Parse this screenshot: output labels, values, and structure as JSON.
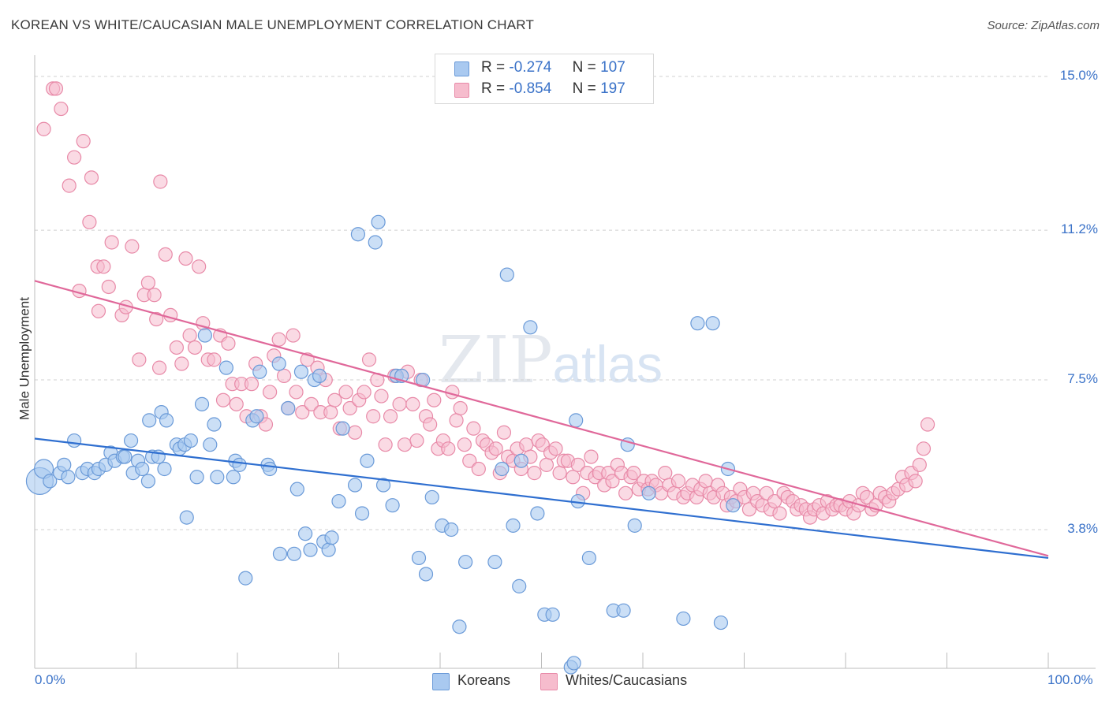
{
  "title": "KOREAN VS WHITE/CAUCASIAN MALE UNEMPLOYMENT CORRELATION CHART",
  "source": "Source: ZipAtlas.com",
  "watermark": {
    "zip": "ZIP",
    "atlas": "atlas"
  },
  "legend_top": [
    {
      "r_label": "R =",
      "r_value": "-0.274",
      "n_label": "N =",
      "n_value": "107"
    },
    {
      "r_label": "R =",
      "r_value": "-0.854",
      "n_label": "N =",
      "n_value": "197"
    }
  ],
  "legend_bottom": [
    "Koreans",
    "Whites/Caucasians"
  ],
  "colors": {
    "blue_fill": "#a9c9f0",
    "blue_stroke": "#6a9ad8",
    "blue_line": "#2f6fd0",
    "pink_fill": "#f6bccd",
    "pink_stroke": "#e88aa8",
    "pink_line": "#e0689a",
    "grid": "#d0d0d0",
    "tick_text": "#3a72c8"
  },
  "chart_data": {
    "type": "scatter",
    "title": "KOREAN VS WHITE/CAUCASIAN MALE UNEMPLOYMENT CORRELATION CHART",
    "xlabel": "",
    "ylabel": "Male Unemployment",
    "xlim": [
      0,
      100
    ],
    "ylim": [
      0,
      15.5
    ],
    "x_tick_labels": [
      "0.0%",
      "100.0%"
    ],
    "y_ticks": [
      3.8,
      7.5,
      11.2,
      15.0
    ],
    "y_tick_labels": [
      "3.8%",
      "7.5%",
      "11.2%",
      "15.0%"
    ],
    "grid": true,
    "legend_position": "top-center",
    "series": [
      {
        "name": "Koreans",
        "r": -0.274,
        "n": 107,
        "trend": {
          "x": [
            0,
            100
          ],
          "y": [
            6.05,
            3.1
          ]
        },
        "points": [
          [
            0.5,
            5.0
          ],
          [
            0.9,
            5.3
          ],
          [
            1.5,
            5.0
          ],
          [
            2.5,
            5.2
          ],
          [
            2.9,
            5.4
          ],
          [
            3.3,
            5.1
          ],
          [
            3.9,
            6.0
          ],
          [
            4.7,
            5.2
          ],
          [
            5.2,
            5.3
          ],
          [
            5.9,
            5.2
          ],
          [
            6.3,
            5.3
          ],
          [
            7.0,
            5.4
          ],
          [
            7.5,
            5.7
          ],
          [
            7.9,
            5.5
          ],
          [
            8.7,
            5.6
          ],
          [
            8.9,
            5.6
          ],
          [
            9.5,
            6.0
          ],
          [
            9.7,
            5.2
          ],
          [
            10.2,
            5.5
          ],
          [
            10.6,
            5.3
          ],
          [
            11.2,
            5.0
          ],
          [
            11.3,
            6.5
          ],
          [
            11.6,
            5.6
          ],
          [
            12.2,
            5.6
          ],
          [
            12.5,
            6.7
          ],
          [
            12.8,
            5.3
          ],
          [
            13.0,
            6.5
          ],
          [
            14.0,
            5.9
          ],
          [
            14.3,
            5.8
          ],
          [
            14.8,
            5.9
          ],
          [
            15.0,
            4.1
          ],
          [
            15.4,
            6.0
          ],
          [
            16.0,
            5.1
          ],
          [
            16.5,
            6.9
          ],
          [
            16.8,
            8.6
          ],
          [
            17.3,
            5.9
          ],
          [
            17.7,
            6.4
          ],
          [
            18.0,
            5.1
          ],
          [
            18.9,
            7.8
          ],
          [
            19.6,
            5.1
          ],
          [
            19.8,
            5.5
          ],
          [
            20.2,
            5.4
          ],
          [
            20.8,
            2.6
          ],
          [
            21.5,
            6.5
          ],
          [
            21.9,
            6.6
          ],
          [
            22.2,
            7.7
          ],
          [
            23.0,
            5.4
          ],
          [
            23.2,
            5.3
          ],
          [
            24.1,
            7.9
          ],
          [
            24.2,
            3.2
          ],
          [
            25.0,
            6.8
          ],
          [
            25.6,
            3.2
          ],
          [
            25.9,
            4.8
          ],
          [
            26.3,
            7.7
          ],
          [
            26.7,
            3.7
          ],
          [
            27.2,
            3.3
          ],
          [
            27.6,
            7.5
          ],
          [
            28.1,
            7.6
          ],
          [
            28.5,
            3.5
          ],
          [
            29.0,
            3.3
          ],
          [
            29.3,
            3.6
          ],
          [
            30.0,
            4.5
          ],
          [
            30.4,
            6.3
          ],
          [
            31.6,
            4.9
          ],
          [
            31.9,
            11.1
          ],
          [
            32.3,
            4.2
          ],
          [
            32.8,
            5.5
          ],
          [
            33.6,
            10.9
          ],
          [
            33.9,
            11.4
          ],
          [
            34.4,
            4.9
          ],
          [
            35.3,
            4.4
          ],
          [
            35.7,
            7.6
          ],
          [
            36.2,
            7.6
          ],
          [
            37.9,
            3.1
          ],
          [
            38.3,
            7.5
          ],
          [
            38.6,
            2.7
          ],
          [
            39.2,
            4.6
          ],
          [
            40.2,
            3.9
          ],
          [
            41.1,
            3.8
          ],
          [
            41.9,
            1.4
          ],
          [
            42.5,
            3.0
          ],
          [
            45.4,
            3.0
          ],
          [
            46.1,
            5.3
          ],
          [
            46.6,
            10.1
          ],
          [
            47.2,
            3.9
          ],
          [
            47.8,
            2.4
          ],
          [
            48.0,
            5.5
          ],
          [
            48.9,
            8.8
          ],
          [
            49.6,
            4.2
          ],
          [
            50.3,
            1.7
          ],
          [
            51.1,
            1.7
          ],
          [
            52.9,
            0.4
          ],
          [
            53.2,
            0.5
          ],
          [
            53.4,
            6.5
          ],
          [
            53.6,
            4.5
          ],
          [
            54.7,
            3.1
          ],
          [
            57.1,
            1.8
          ],
          [
            58.1,
            1.8
          ],
          [
            58.5,
            5.9
          ],
          [
            59.2,
            3.9
          ],
          [
            60.6,
            4.7
          ],
          [
            64.0,
            1.6
          ],
          [
            65.4,
            8.9
          ],
          [
            66.9,
            8.9
          ],
          [
            67.7,
            1.5
          ],
          [
            68.4,
            5.3
          ],
          [
            68.9,
            4.4
          ]
        ],
        "size_note": "first point drawn larger"
      },
      {
        "name": "Whites/Caucasians",
        "r": -0.854,
        "n": 197,
        "trend": {
          "x": [
            0,
            100
          ],
          "y": [
            9.95,
            3.15
          ]
        },
        "points": [
          [
            0.9,
            13.7
          ],
          [
            1.8,
            14.7
          ],
          [
            2.1,
            14.7
          ],
          [
            2.6,
            14.2
          ],
          [
            3.4,
            12.3
          ],
          [
            3.9,
            13.0
          ],
          [
            4.4,
            9.7
          ],
          [
            4.8,
            13.4
          ],
          [
            5.4,
            11.4
          ],
          [
            5.6,
            12.5
          ],
          [
            6.2,
            10.3
          ],
          [
            6.3,
            9.2
          ],
          [
            6.8,
            10.3
          ],
          [
            7.3,
            9.8
          ],
          [
            7.6,
            10.9
          ],
          [
            8.6,
            9.1
          ],
          [
            9.0,
            9.3
          ],
          [
            9.6,
            10.8
          ],
          [
            10.3,
            8.0
          ],
          [
            10.8,
            9.6
          ],
          [
            11.2,
            9.9
          ],
          [
            11.8,
            9.6
          ],
          [
            12.0,
            9.0
          ],
          [
            12.3,
            7.8
          ],
          [
            12.4,
            12.4
          ],
          [
            12.9,
            10.6
          ],
          [
            13.4,
            9.1
          ],
          [
            14.0,
            8.3
          ],
          [
            14.5,
            7.9
          ],
          [
            14.9,
            10.5
          ],
          [
            15.3,
            8.6
          ],
          [
            15.8,
            8.3
          ],
          [
            16.2,
            10.3
          ],
          [
            16.6,
            8.9
          ],
          [
            17.1,
            8.0
          ],
          [
            17.7,
            8.0
          ],
          [
            18.3,
            8.6
          ],
          [
            18.6,
            7.0
          ],
          [
            19.1,
            8.4
          ],
          [
            19.5,
            7.4
          ],
          [
            19.9,
            6.9
          ],
          [
            20.4,
            7.4
          ],
          [
            20.9,
            6.6
          ],
          [
            21.4,
            7.4
          ],
          [
            21.8,
            7.9
          ],
          [
            22.3,
            6.6
          ],
          [
            22.8,
            6.4
          ],
          [
            23.2,
            7.2
          ],
          [
            23.6,
            8.1
          ],
          [
            24.1,
            8.5
          ],
          [
            24.6,
            7.6
          ],
          [
            25.0,
            6.8
          ],
          [
            25.5,
            8.6
          ],
          [
            25.8,
            7.2
          ],
          [
            26.4,
            6.7
          ],
          [
            26.9,
            8.0
          ],
          [
            27.3,
            6.9
          ],
          [
            27.9,
            7.8
          ],
          [
            28.2,
            6.7
          ],
          [
            28.7,
            7.5
          ],
          [
            29.2,
            6.7
          ],
          [
            29.6,
            7.0
          ],
          [
            30.1,
            6.3
          ],
          [
            30.7,
            7.2
          ],
          [
            31.1,
            6.8
          ],
          [
            31.6,
            6.2
          ],
          [
            32.0,
            7.0
          ],
          [
            32.5,
            7.2
          ],
          [
            33.0,
            8.0
          ],
          [
            33.4,
            6.6
          ],
          [
            33.8,
            7.5
          ],
          [
            34.2,
            7.1
          ],
          [
            34.6,
            5.9
          ],
          [
            35.1,
            6.6
          ],
          [
            35.5,
            7.6
          ],
          [
            36.0,
            6.9
          ],
          [
            36.5,
            5.9
          ],
          [
            36.8,
            7.7
          ],
          [
            37.3,
            6.9
          ],
          [
            37.7,
            6.0
          ],
          [
            38.1,
            7.5
          ],
          [
            38.6,
            6.6
          ],
          [
            39.0,
            6.4
          ],
          [
            39.4,
            7.0
          ],
          [
            39.8,
            5.8
          ],
          [
            40.3,
            6.0
          ],
          [
            40.8,
            5.8
          ],
          [
            41.2,
            7.2
          ],
          [
            41.6,
            6.5
          ],
          [
            42.0,
            6.8
          ],
          [
            42.4,
            5.9
          ],
          [
            42.9,
            5.5
          ],
          [
            43.3,
            6.3
          ],
          [
            43.8,
            5.3
          ],
          [
            44.2,
            6.0
          ],
          [
            44.6,
            5.9
          ],
          [
            45.1,
            5.7
          ],
          [
            45.5,
            5.8
          ],
          [
            45.9,
            5.2
          ],
          [
            46.3,
            6.2
          ],
          [
            46.7,
            5.6
          ],
          [
            47.2,
            5.5
          ],
          [
            47.6,
            5.8
          ],
          [
            48.0,
            5.3
          ],
          [
            48.5,
            5.9
          ],
          [
            48.9,
            5.6
          ],
          [
            49.3,
            5.2
          ],
          [
            49.7,
            6.0
          ],
          [
            50.1,
            5.9
          ],
          [
            50.5,
            5.4
          ],
          [
            50.9,
            5.7
          ],
          [
            51.4,
            5.8
          ],
          [
            51.8,
            5.2
          ],
          [
            52.2,
            5.5
          ],
          [
            52.6,
            5.5
          ],
          [
            53.1,
            5.1
          ],
          [
            53.6,
            5.4
          ],
          [
            54.1,
            4.7
          ],
          [
            54.5,
            5.2
          ],
          [
            54.9,
            5.6
          ],
          [
            55.3,
            5.1
          ],
          [
            55.7,
            5.2
          ],
          [
            56.2,
            4.9
          ],
          [
            56.6,
            5.2
          ],
          [
            57.0,
            5.0
          ],
          [
            57.5,
            5.4
          ],
          [
            57.9,
            5.2
          ],
          [
            58.3,
            4.7
          ],
          [
            58.8,
            5.1
          ],
          [
            59.1,
            5.2
          ],
          [
            59.6,
            4.8
          ],
          [
            60.1,
            5.0
          ],
          [
            60.5,
            4.8
          ],
          [
            60.9,
            5.0
          ],
          [
            61.3,
            4.9
          ],
          [
            61.8,
            4.7
          ],
          [
            62.2,
            5.2
          ],
          [
            62.6,
            4.9
          ],
          [
            63.1,
            4.7
          ],
          [
            63.5,
            5.0
          ],
          [
            64.0,
            4.6
          ],
          [
            64.4,
            4.7
          ],
          [
            64.9,
            4.9
          ],
          [
            65.3,
            4.6
          ],
          [
            65.7,
            4.8
          ],
          [
            66.2,
            5.0
          ],
          [
            66.6,
            4.7
          ],
          [
            67.0,
            4.6
          ],
          [
            67.4,
            4.9
          ],
          [
            67.9,
            4.7
          ],
          [
            68.3,
            4.4
          ],
          [
            68.7,
            4.6
          ],
          [
            69.2,
            4.5
          ],
          [
            69.6,
            4.8
          ],
          [
            70.0,
            4.6
          ],
          [
            70.5,
            4.3
          ],
          [
            70.9,
            4.7
          ],
          [
            71.3,
            4.5
          ],
          [
            71.8,
            4.4
          ],
          [
            72.2,
            4.7
          ],
          [
            72.6,
            4.3
          ],
          [
            73.0,
            4.5
          ],
          [
            73.5,
            4.2
          ],
          [
            73.9,
            4.7
          ],
          [
            74.3,
            4.6
          ],
          [
            74.8,
            4.5
          ],
          [
            75.2,
            4.3
          ],
          [
            75.6,
            4.4
          ],
          [
            76.1,
            4.3
          ],
          [
            76.5,
            4.1
          ],
          [
            76.9,
            4.3
          ],
          [
            77.4,
            4.4
          ],
          [
            77.8,
            4.2
          ],
          [
            78.2,
            4.5
          ],
          [
            78.7,
            4.3
          ],
          [
            79.1,
            4.4
          ],
          [
            79.5,
            4.4
          ],
          [
            80.0,
            4.3
          ],
          [
            80.4,
            4.5
          ],
          [
            80.8,
            4.2
          ],
          [
            81.3,
            4.4
          ],
          [
            81.7,
            4.7
          ],
          [
            82.1,
            4.6
          ],
          [
            82.6,
            4.3
          ],
          [
            83.0,
            4.4
          ],
          [
            83.4,
            4.7
          ],
          [
            83.9,
            4.6
          ],
          [
            84.3,
            4.5
          ],
          [
            84.7,
            4.7
          ],
          [
            85.2,
            4.8
          ],
          [
            85.6,
            5.1
          ],
          [
            86.0,
            4.9
          ],
          [
            86.5,
            5.2
          ],
          [
            86.9,
            5.0
          ],
          [
            87.3,
            5.4
          ],
          [
            87.7,
            5.8
          ],
          [
            88.1,
            6.4
          ]
        ]
      }
    ]
  }
}
